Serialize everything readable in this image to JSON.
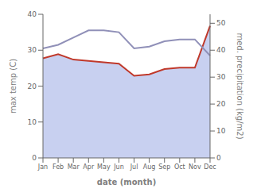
{
  "chart_data": {
    "type": "line",
    "xlabel": "date (month)",
    "ylabel": "max temp (C)",
    "y2label": "med. precipitation (kg/m2)",
    "categories": [
      "Jan",
      "Feb",
      "Mar",
      "Apr",
      "May",
      "Jun",
      "Jul",
      "Aug",
      "Sep",
      "Oct",
      "Nov",
      "Dec"
    ],
    "ylim": [
      0,
      40
    ],
    "yticks": [
      0,
      10,
      20,
      30,
      40
    ],
    "y2lim": [
      0,
      53.33
    ],
    "y2ticks": [
      0,
      10,
      20,
      30,
      40,
      50
    ],
    "grid": false,
    "series": [
      {
        "type": "area",
        "axis": "y2",
        "color": "#c8d0f0",
        "values": [
          37.0,
          38.5,
          36.5,
          36.0,
          35.5,
          35.0,
          30.5,
          31.0,
          33.0,
          33.5,
          33.5,
          49.0
        ]
      },
      {
        "type": "line",
        "axis": "y2",
        "color": "#c0392b",
        "values": [
          37.0,
          38.5,
          36.5,
          36.0,
          35.5,
          35.0,
          30.5,
          31.0,
          33.0,
          33.5,
          33.5,
          49.0
        ]
      },
      {
        "type": "line",
        "axis": "y",
        "color": "#9090b8",
        "values": [
          30.5,
          31.5,
          33.5,
          35.5,
          35.5,
          35.0,
          30.5,
          31.0,
          32.5,
          33.0,
          33.0,
          28.5
        ]
      }
    ]
  }
}
